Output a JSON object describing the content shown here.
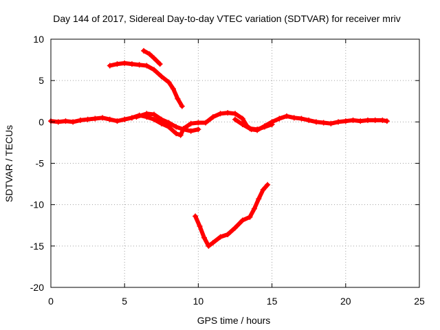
{
  "chart_data": {
    "type": "scatter",
    "title": "Day 144 of 2017, Sidereal Day-to-day VTEC variation (SDTVAR) for receiver mriv",
    "xlabel": "GPS time / hours",
    "ylabel": "SDTVAR / TECUs",
    "xlim": [
      0,
      25
    ],
    "ylim": [
      -20,
      10
    ],
    "xticks": [
      0,
      5,
      10,
      15,
      20,
      25
    ],
    "yticks": [
      -20,
      -15,
      -10,
      -5,
      0,
      5,
      10
    ],
    "grid": true,
    "marker_color": "#ff0000",
    "series": [
      {
        "name": "main satellite arcs near zero",
        "points": [
          [
            0.0,
            0.1
          ],
          [
            0.5,
            0.0
          ],
          [
            1.0,
            0.1
          ],
          [
            1.5,
            0.0
          ],
          [
            2.0,
            0.2
          ],
          [
            2.5,
            0.3
          ],
          [
            3.0,
            0.4
          ],
          [
            3.5,
            0.5
          ],
          [
            4.0,
            0.3
          ],
          [
            4.5,
            0.1
          ],
          [
            5.0,
            0.3
          ],
          [
            5.5,
            0.5
          ],
          [
            6.0,
            0.8
          ],
          [
            6.5,
            0.6
          ],
          [
            7.0,
            0.3
          ],
          [
            7.5,
            -0.2
          ],
          [
            8.0,
            -0.6
          ],
          [
            8.5,
            -1.4
          ],
          [
            8.8,
            -1.6
          ],
          [
            9.0,
            -0.8
          ],
          [
            9.5,
            -0.2
          ],
          [
            10.0,
            -0.1
          ],
          [
            10.5,
            -0.1
          ],
          [
            11.0,
            0.6
          ],
          [
            11.5,
            1.0
          ],
          [
            12.0,
            1.1
          ],
          [
            12.5,
            1.0
          ],
          [
            13.0,
            0.4
          ],
          [
            13.3,
            -0.5
          ],
          [
            13.6,
            -0.9
          ],
          [
            14.0,
            -1.0
          ],
          [
            14.5,
            -0.5
          ],
          [
            15.0,
            0.0
          ],
          [
            15.5,
            0.4
          ],
          [
            16.0,
            0.7
          ],
          [
            16.5,
            0.5
          ],
          [
            17.0,
            0.4
          ],
          [
            17.5,
            0.2
          ],
          [
            18.0,
            0.0
          ],
          [
            18.5,
            -0.1
          ],
          [
            19.0,
            -0.2
          ],
          [
            19.5,
            0.0
          ],
          [
            20.0,
            0.1
          ],
          [
            20.5,
            0.2
          ],
          [
            21.0,
            0.1
          ],
          [
            21.5,
            0.2
          ],
          [
            22.0,
            0.2
          ],
          [
            22.5,
            0.2
          ],
          [
            22.8,
            0.1
          ]
        ]
      },
      {
        "name": "secondary arc",
        "points": [
          [
            5.8,
            0.6
          ],
          [
            6.5,
            1.0
          ],
          [
            7.0,
            0.9
          ],
          [
            7.5,
            0.3
          ],
          [
            8.0,
            -0.1
          ],
          [
            8.5,
            -0.6
          ],
          [
            9.0,
            -0.9
          ],
          [
            9.5,
            -1.1
          ],
          [
            10.0,
            -0.9
          ]
        ]
      },
      {
        "name": "secondary arc 2",
        "points": [
          [
            12.5,
            0.3
          ],
          [
            13.0,
            -0.3
          ],
          [
            13.5,
            -0.8
          ],
          [
            14.0,
            -0.9
          ],
          [
            14.5,
            -0.6
          ],
          [
            15.0,
            -0.3
          ]
        ]
      },
      {
        "name": "positive excursion arc",
        "points": [
          [
            4.0,
            6.8
          ],
          [
            4.5,
            7.0
          ],
          [
            5.0,
            7.1
          ],
          [
            5.5,
            7.0
          ],
          [
            6.0,
            6.9
          ],
          [
            6.5,
            6.8
          ],
          [
            7.0,
            6.3
          ],
          [
            7.5,
            5.5
          ],
          [
            8.0,
            4.8
          ],
          [
            8.3,
            4.0
          ],
          [
            8.6,
            2.8
          ],
          [
            8.9,
            1.9
          ]
        ]
      },
      {
        "name": "short high arc",
        "points": [
          [
            6.3,
            8.6
          ],
          [
            6.7,
            8.2
          ],
          [
            7.0,
            7.7
          ],
          [
            7.4,
            7.0
          ]
        ]
      },
      {
        "name": "negative excursion arc",
        "points": [
          [
            9.8,
            -11.4
          ],
          [
            10.1,
            -12.6
          ],
          [
            10.4,
            -14.0
          ],
          [
            10.7,
            -15.0
          ],
          [
            11.0,
            -14.6
          ],
          [
            11.5,
            -13.9
          ],
          [
            12.0,
            -13.6
          ],
          [
            12.5,
            -12.8
          ],
          [
            13.0,
            -11.9
          ],
          [
            13.5,
            -11.5
          ],
          [
            13.8,
            -10.5
          ],
          [
            14.1,
            -9.3
          ],
          [
            14.4,
            -8.2
          ],
          [
            14.7,
            -7.6
          ]
        ]
      }
    ]
  }
}
